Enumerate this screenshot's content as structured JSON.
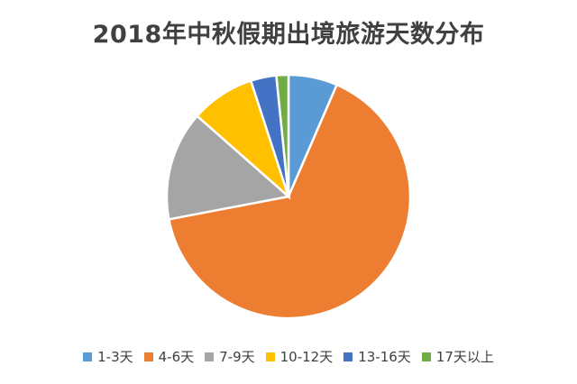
{
  "chart_data": {
    "type": "pie",
    "title": "2018年中秋假期出境旅游天数分布",
    "categories": [
      "1-3天",
      "4-6天",
      "7-9天",
      "10-12天",
      "13-16天",
      "17天以上"
    ],
    "values": [
      6.5,
      65.5,
      14.5,
      8.5,
      3.4,
      1.6
    ],
    "unit": "%",
    "colors": [
      "#5B9BD5",
      "#ED7D31",
      "#A5A5A5",
      "#FFC000",
      "#4472C4",
      "#70AD47"
    ],
    "start_angle_deg": 0,
    "direction": "clockwise",
    "legend_position": "bottom",
    "slice_border_color": "#ffffff"
  }
}
